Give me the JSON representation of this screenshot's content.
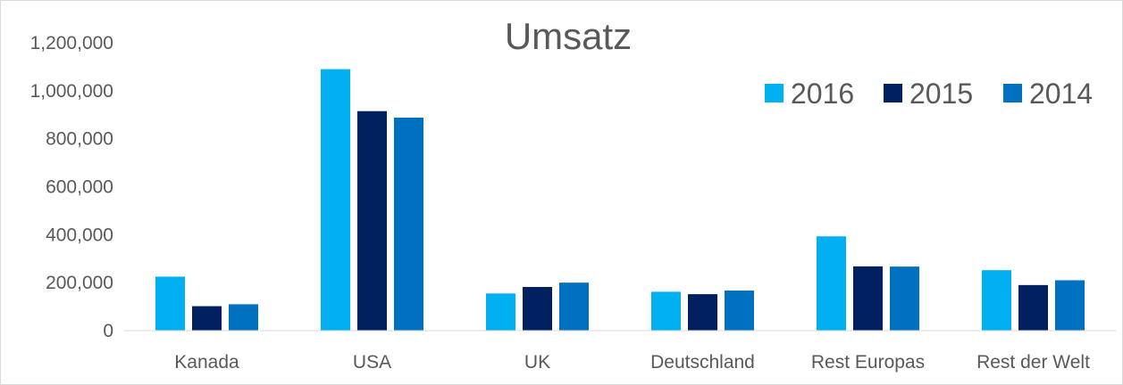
{
  "chart_data": {
    "type": "bar",
    "title": "Umsatz",
    "xlabel": "",
    "ylabel": "",
    "ylim": [
      0,
      1200000
    ],
    "yticks": [
      0,
      200000,
      400000,
      600000,
      800000,
      1000000,
      1200000
    ],
    "ytick_labels": [
      "0",
      "200,000",
      "400,000",
      "600,000",
      "800,000",
      "1,000,000",
      "1,200,000"
    ],
    "grid": false,
    "legend_position": "top-right",
    "categories": [
      "Kanada",
      "USA",
      "UK",
      "Deutschland",
      "Rest Europas",
      "Rest der Welt"
    ],
    "series": [
      {
        "name": "2016",
        "color": "#00b0f0",
        "values": [
          225000,
          1090000,
          155000,
          162000,
          393000,
          252000
        ]
      },
      {
        "name": "2015",
        "color": "#002060",
        "values": [
          102000,
          915000,
          182000,
          152000,
          268000,
          190000
        ]
      },
      {
        "name": "2014",
        "color": "#0070c0",
        "values": [
          110000,
          888000,
          200000,
          167000,
          267000,
          210000
        ]
      }
    ]
  }
}
